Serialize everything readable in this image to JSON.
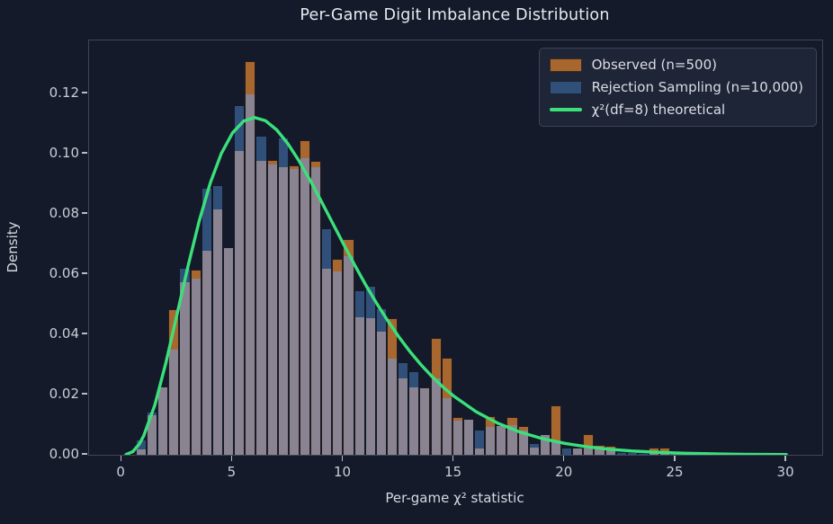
{
  "title": "Per-Game Digit Imbalance Distribution",
  "colors": {
    "background": "#141a2a",
    "observed": "#a8672f",
    "rejection": "#30507a",
    "overlap": "#8a8492",
    "curve": "#3be07b",
    "spine": "#3e4656",
    "legend_bg": "#1e2536"
  },
  "legend": {
    "observed_label": "Observed (n=500)",
    "rejection_label": "Rejection Sampling (n=10,000)",
    "curve_label": "χ²(df=8) theoretical"
  },
  "chart_data": {
    "type": "bar",
    "subtype": "overlaid-histograms-with-density-curve",
    "title": "Per-Game Digit Imbalance Distribution",
    "xlabel": "Per-game χ² statistic",
    "ylabel": "Density",
    "x_ticks": [
      0,
      5,
      10,
      15,
      20,
      25,
      30
    ],
    "y_ticks": [
      0.0,
      0.02,
      0.04,
      0.06,
      0.08,
      0.1,
      0.12
    ],
    "xlim": [
      -1.47,
      31.62
    ],
    "ylim": [
      0,
      0.1376
    ],
    "grid": false,
    "legend_position": "upper right",
    "bins": {
      "start": 0.638,
      "width": 0.4926,
      "count": 60
    },
    "series": [
      {
        "name": "Observed (n=500)",
        "color": "#a8672f",
        "values": [
          0.0017,
          0.013,
          0.0225,
          0.0484,
          0.0572,
          0.0616,
          0.0677,
          0.0815,
          0.0686,
          0.101,
          0.1307,
          0.0975,
          0.098,
          0.0955,
          0.096,
          0.1045,
          0.0977,
          0.0617,
          0.065,
          0.0716,
          0.0458,
          0.0453,
          0.0408,
          0.0453,
          0.0254,
          0.0224,
          0.0224,
          0.0388,
          0.0323,
          0.0126,
          0.0116,
          0.002,
          0.0127,
          0.0096,
          0.0124,
          0.0095,
          0.0025,
          0.0065,
          0.0163,
          0.0,
          0.0022,
          0.0068,
          0.0032,
          0.003,
          0.0,
          0.0,
          0.0,
          0.0025,
          0.0025,
          0.0,
          0.0,
          0.0,
          0.0,
          0.0,
          0.0,
          0.0,
          0.0,
          0.0,
          0.0,
          0.0
        ]
      },
      {
        "name": "Rejection Sampling (n=10,000)",
        "color": "#30507a",
        "values": [
          0.005,
          0.0142,
          0.0226,
          0.035,
          0.0622,
          0.0586,
          0.0886,
          0.0895,
          0.069,
          0.116,
          0.1198,
          0.106,
          0.0965,
          0.1055,
          0.095,
          0.0985,
          0.0955,
          0.0751,
          0.061,
          0.066,
          0.0547,
          0.0562,
          0.0488,
          0.0319,
          0.0308,
          0.0279,
          0.0221,
          0.0254,
          0.0189,
          0.0114,
          0.0117,
          0.0085,
          0.0092,
          0.0099,
          0.0099,
          0.008,
          0.004,
          0.0068,
          0.0048,
          0.0025,
          0.0022,
          0.002,
          0.002,
          0.0015,
          0.001,
          0.0008,
          0.0007,
          0.0008,
          0.0006,
          0.0005,
          0.0004,
          0.0003,
          0.0003,
          0.0002,
          0.0002,
          0.0002,
          0.0001,
          0.0001,
          0.0001,
          0.0001
        ]
      }
    ],
    "curve": {
      "name": "χ²(df=8) theoretical",
      "color": "#3be07b",
      "df": 8,
      "x": [
        0.2,
        0.5,
        0.8,
        1.0,
        1.5,
        2.0,
        2.5,
        3.0,
        3.5,
        4.0,
        4.5,
        5.0,
        5.5,
        6.0,
        6.5,
        7.0,
        7.5,
        8.0,
        8.5,
        9.0,
        9.5,
        10.0,
        10.5,
        11.0,
        11.5,
        12.0,
        12.5,
        13.0,
        13.5,
        14.0,
        14.5,
        15.0,
        16.0,
        17.0,
        18.0,
        19.0,
        20.0,
        21.0,
        22.0,
        23.0,
        24.0,
        25.0,
        26.0,
        27.0,
        28.0,
        29.0,
        30.0
      ],
      "y": [
        8e-05,
        0.00101,
        0.00357,
        0.00632,
        0.01661,
        0.03066,
        0.04663,
        0.06276,
        0.0776,
        0.09024,
        0.10005,
        0.10688,
        0.11079,
        0.11202,
        0.11091,
        0.10789,
        0.10335,
        0.09768,
        0.09124,
        0.08435,
        0.07727,
        0.07019,
        0.06328,
        0.05666,
        0.05043,
        0.04462,
        0.03929,
        0.0344,
        0.03,
        0.02606,
        0.02255,
        0.01944,
        0.01431,
        0.01041,
        0.0075,
        0.00535,
        0.00378,
        0.00266,
        0.00185,
        0.00128,
        0.00089,
        0.00061,
        0.00041,
        0.00028,
        0.00019,
        0.00013,
        9e-05
      ]
    }
  }
}
